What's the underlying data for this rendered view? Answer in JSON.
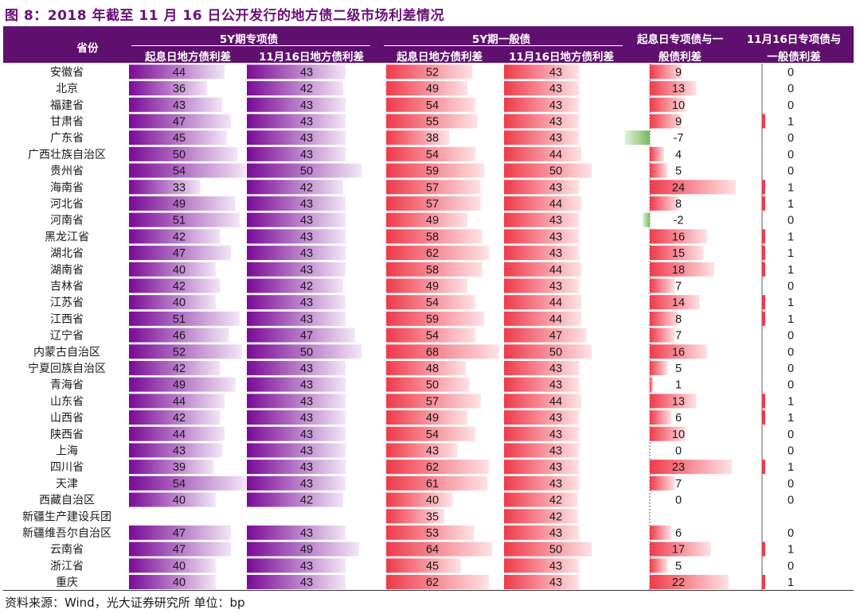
{
  "title": "图 8：2018 年截至 11 月 16 日公开发行的地方债二级市场利差情况",
  "source": "资料来源：Wind，光大证券研究所   单位：bp",
  "colors": {
    "header_bg": "#5f0f6e",
    "purple_bar": "#7a0a96",
    "red_bar": "#ef3a4a",
    "green_bar": "#79b95a"
  },
  "headers": {
    "province": "省份",
    "group1": "5Y期专项债",
    "group2": "5Y期一般债",
    "col1": "起息日地方债利差",
    "col2": "11月16日地方债利差",
    "col3": "起息日地方债利差",
    "col4": "11月16日地方债利差",
    "col5_line1": "起息日专项债与一",
    "col5_line2": "般债利差",
    "col6_line1": "11月16日专项债与",
    "col6_line2": "一般债利差"
  },
  "chart_data": {
    "type": "table",
    "unit": "bp",
    "columns": [
      "5Y期专项债 起息日地方债利差",
      "5Y期专项债 11月16日地方债利差",
      "5Y期一般债 起息日地方债利差",
      "5Y期一般债 11月16日地方债利差",
      "起息日专项债与一般债利差",
      "11月16日专项债与一般债利差"
    ],
    "rows": [
      {
        "province": "安徽省",
        "values": [
          44,
          43,
          52,
          43,
          9,
          0
        ]
      },
      {
        "province": "北京",
        "values": [
          36,
          42,
          49,
          43,
          13,
          0
        ]
      },
      {
        "province": "福建省",
        "values": [
          43,
          43,
          54,
          43,
          10,
          0
        ]
      },
      {
        "province": "甘肃省",
        "values": [
          47,
          43,
          55,
          43,
          9,
          1
        ]
      },
      {
        "province": "广东省",
        "values": [
          45,
          43,
          38,
          43,
          -7,
          0
        ]
      },
      {
        "province": "广西壮族自治区",
        "values": [
          50,
          43,
          54,
          44,
          4,
          0
        ]
      },
      {
        "province": "贵州省",
        "values": [
          54,
          50,
          59,
          50,
          5,
          0
        ]
      },
      {
        "province": "海南省",
        "values": [
          33,
          42,
          57,
          43,
          24,
          1
        ]
      },
      {
        "province": "河北省",
        "values": [
          49,
          43,
          57,
          44,
          8,
          1
        ]
      },
      {
        "province": "河南省",
        "values": [
          51,
          43,
          49,
          43,
          -2,
          0
        ]
      },
      {
        "province": "黑龙江省",
        "values": [
          42,
          43,
          58,
          43,
          16,
          1
        ]
      },
      {
        "province": "湖北省",
        "values": [
          47,
          43,
          62,
          43,
          15,
          1
        ]
      },
      {
        "province": "湖南省",
        "values": [
          40,
          43,
          58,
          44,
          18,
          1
        ]
      },
      {
        "province": "吉林省",
        "values": [
          42,
          42,
          49,
          43,
          7,
          0
        ]
      },
      {
        "province": "江苏省",
        "values": [
          40,
          43,
          54,
          44,
          14,
          1
        ]
      },
      {
        "province": "江西省",
        "values": [
          51,
          43,
          59,
          44,
          8,
          1
        ]
      },
      {
        "province": "辽宁省",
        "values": [
          46,
          47,
          54,
          47,
          7,
          0
        ]
      },
      {
        "province": "内蒙古自治区",
        "values": [
          52,
          50,
          68,
          50,
          16,
          0
        ]
      },
      {
        "province": "宁夏回族自治区",
        "values": [
          42,
          43,
          48,
          43,
          5,
          0
        ]
      },
      {
        "province": "青海省",
        "values": [
          49,
          43,
          50,
          43,
          1,
          0
        ]
      },
      {
        "province": "山东省",
        "values": [
          44,
          43,
          57,
          44,
          13,
          1
        ]
      },
      {
        "province": "山西省",
        "values": [
          42,
          43,
          49,
          43,
          6,
          1
        ]
      },
      {
        "province": "陕西省",
        "values": [
          44,
          43,
          54,
          43,
          10,
          0
        ]
      },
      {
        "province": "上海",
        "values": [
          43,
          43,
          43,
          43,
          0,
          0
        ]
      },
      {
        "province": "四川省",
        "values": [
          39,
          43,
          62,
          43,
          23,
          1
        ]
      },
      {
        "province": "天津",
        "values": [
          54,
          43,
          61,
          43,
          7,
          0
        ]
      },
      {
        "province": "西藏自治区",
        "values": [
          40,
          42,
          40,
          42,
          0,
          0
        ]
      },
      {
        "province": "新疆生产建设兵团",
        "values": [
          null,
          null,
          35,
          42,
          null,
          null
        ]
      },
      {
        "province": "新疆维吾尔自治区",
        "values": [
          47,
          43,
          53,
          43,
          6,
          0
        ]
      },
      {
        "province": "云南省",
        "values": [
          47,
          49,
          64,
          50,
          17,
          1
        ]
      },
      {
        "province": "浙江省",
        "values": [
          40,
          43,
          45,
          43,
          5,
          0
        ]
      },
      {
        "province": "重庆",
        "values": [
          40,
          43,
          62,
          43,
          22,
          1
        ]
      }
    ]
  }
}
